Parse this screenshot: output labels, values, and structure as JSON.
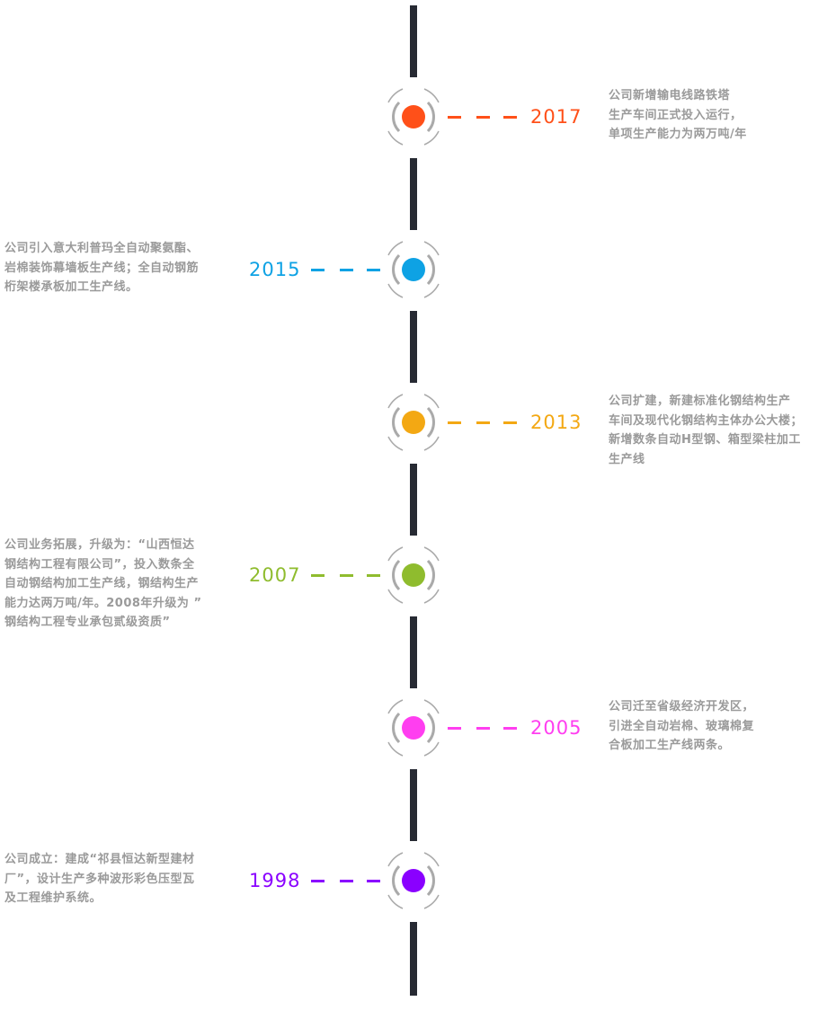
{
  "events": [
    {
      "year": "2017",
      "color": "#ff5019",
      "side": "right",
      "lines": [
        "公司新增输电线路铁塔",
        "生产车间正式投入运行，",
        "单项生产能力为两万吨/年"
      ]
    },
    {
      "year": "2015",
      "color": "#0ea2e4",
      "side": "left",
      "lines": [
        "公司引入意大利普玛全自动聚氨酯、",
        "岩棉装饰幕墙板生产线；全自动钢筋",
        "桁架楼承板加工生产线。"
      ]
    },
    {
      "year": "2013",
      "color": "#f3a813",
      "side": "right",
      "lines": [
        "公司扩建，新建标准化钢结构生产",
        "车间及现代化钢结构主体办公大楼；",
        "新增数条自动H型钢、箱型梁柱加工",
        "生产线"
      ]
    },
    {
      "year": "2007",
      "color": "#8fbc2e",
      "side": "left",
      "lines": [
        "公司业务拓展，升级为：“山西恒达",
        "钢结构工程有限公司”，投入数条全",
        "自动钢结构加工生产线，钢结构生产",
        "能力达两万吨/年。2008年升级为 ”",
        "钢结构工程专业承包贰级资质”"
      ]
    },
    {
      "year": "2005",
      "color": "#ff3ef0",
      "side": "right",
      "lines": [
        "公司迁至省级经济开发区，",
        "引进全自动岩棉、玻璃棉复",
        "合板加工生产线两条。"
      ]
    },
    {
      "year": "1998",
      "color": "#8a00ff",
      "side": "left",
      "lines": [
        "公司成立：建成“祁县恒达新型建材",
        "厂”，设计生产多种波形彩色压型瓦",
        "及工程维护系统。"
      ]
    }
  ]
}
